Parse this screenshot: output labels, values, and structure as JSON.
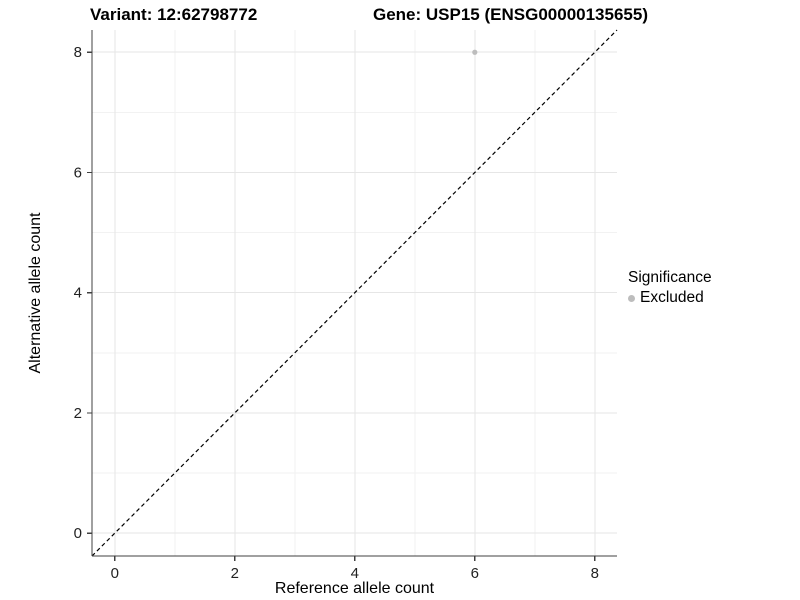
{
  "titles": {
    "variant": "Variant: 12:62798772",
    "gene": "Gene: USP15 (ENSG00000135655)"
  },
  "axes": {
    "x_label": "Reference allele count",
    "y_label": "Alternative allele count"
  },
  "legend": {
    "title": "Significance",
    "items": [
      {
        "label": "Excluded",
        "color": "#bdbdbd"
      }
    ]
  },
  "chart_data": {
    "type": "scatter",
    "title_left": "Variant: 12:62798772",
    "title_right": "Gene: USP15 (ENSG00000135655)",
    "xlabel": "Reference allele count",
    "ylabel": "Alternative allele count",
    "xlim": [
      -0.38,
      8.37
    ],
    "ylim": [
      -0.38,
      8.37
    ],
    "x_ticks": [
      0,
      2,
      4,
      6,
      8
    ],
    "y_ticks": [
      0,
      2,
      4,
      6,
      8
    ],
    "x_minor_ticks": [
      1,
      3,
      5,
      7
    ],
    "y_minor_ticks": [
      1,
      3,
      5,
      7
    ],
    "grid": true,
    "legend_position": "right",
    "series": [
      {
        "name": "Excluded",
        "points": [
          {
            "x": 6,
            "y": 8
          }
        ],
        "color": "#bdbdbd"
      }
    ],
    "reference_line": {
      "slope": 1,
      "intercept": 0,
      "style": "dashed",
      "color": "#000000"
    },
    "colors": {
      "point": "#bdbdbd",
      "grid_major": "#e6e6e6",
      "grid_minor": "#f2f2f2",
      "axis_line": "#404040",
      "tick_label": "#222222"
    }
  }
}
